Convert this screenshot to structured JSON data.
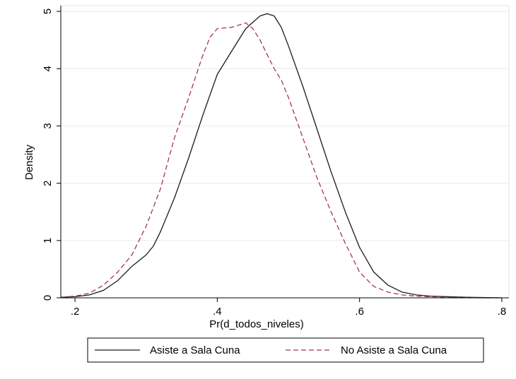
{
  "chart_data": {
    "type": "line",
    "xlabel": "Pr(d_todos_niveles)",
    "ylabel": "Density",
    "xlim": [
      0.18,
      0.81
    ],
    "ylim": [
      0,
      5.1
    ],
    "x_ticks": [
      {
        "value": 0.2,
        "label": ".2"
      },
      {
        "value": 0.4,
        "label": ".4"
      },
      {
        "value": 0.6,
        "label": ".6"
      },
      {
        "value": 0.8,
        "label": ".8"
      }
    ],
    "y_ticks": [
      {
        "value": 0,
        "label": "0"
      },
      {
        "value": 1,
        "label": "1"
      },
      {
        "value": 2,
        "label": "2"
      },
      {
        "value": 3,
        "label": "3"
      },
      {
        "value": 4,
        "label": "4"
      },
      {
        "value": 5,
        "label": "5"
      }
    ],
    "grid": "horizontal",
    "legend_position": "bottom",
    "series": [
      {
        "name": "Asiste a Sala Cuna",
        "color": "#1a1a1a",
        "line_style": "solid",
        "points": [
          [
            0.18,
            0.01
          ],
          [
            0.2,
            0.02
          ],
          [
            0.22,
            0.05
          ],
          [
            0.24,
            0.13
          ],
          [
            0.26,
            0.3
          ],
          [
            0.28,
            0.55
          ],
          [
            0.3,
            0.75
          ],
          [
            0.31,
            0.9
          ],
          [
            0.32,
            1.15
          ],
          [
            0.34,
            1.75
          ],
          [
            0.36,
            2.45
          ],
          [
            0.38,
            3.2
          ],
          [
            0.4,
            3.9
          ],
          [
            0.42,
            4.3
          ],
          [
            0.44,
            4.7
          ],
          [
            0.46,
            4.92
          ],
          [
            0.47,
            4.96
          ],
          [
            0.48,
            4.92
          ],
          [
            0.49,
            4.72
          ],
          [
            0.5,
            4.4
          ],
          [
            0.52,
            3.7
          ],
          [
            0.54,
            2.95
          ],
          [
            0.56,
            2.2
          ],
          [
            0.58,
            1.5
          ],
          [
            0.6,
            0.88
          ],
          [
            0.62,
            0.45
          ],
          [
            0.64,
            0.22
          ],
          [
            0.66,
            0.1
          ],
          [
            0.68,
            0.05
          ],
          [
            0.7,
            0.03
          ],
          [
            0.75,
            0.01
          ],
          [
            0.8,
            0.0
          ]
        ]
      },
      {
        "name": "No Asiste a Sala Cuna",
        "color": "#a3384a",
        "line_style": "dashed",
        "points": [
          [
            0.18,
            0.01
          ],
          [
            0.2,
            0.03
          ],
          [
            0.22,
            0.08
          ],
          [
            0.24,
            0.22
          ],
          [
            0.26,
            0.45
          ],
          [
            0.28,
            0.75
          ],
          [
            0.3,
            1.25
          ],
          [
            0.32,
            1.9
          ],
          [
            0.34,
            2.8
          ],
          [
            0.36,
            3.5
          ],
          [
            0.38,
            4.25
          ],
          [
            0.39,
            4.55
          ],
          [
            0.4,
            4.7
          ],
          [
            0.42,
            4.72
          ],
          [
            0.44,
            4.8
          ],
          [
            0.45,
            4.7
          ],
          [
            0.46,
            4.5
          ],
          [
            0.47,
            4.25
          ],
          [
            0.48,
            4.0
          ],
          [
            0.49,
            3.8
          ],
          [
            0.5,
            3.5
          ],
          [
            0.52,
            2.8
          ],
          [
            0.54,
            2.1
          ],
          [
            0.56,
            1.5
          ],
          [
            0.58,
            0.95
          ],
          [
            0.6,
            0.45
          ],
          [
            0.62,
            0.2
          ],
          [
            0.64,
            0.1
          ],
          [
            0.66,
            0.05
          ],
          [
            0.68,
            0.03
          ],
          [
            0.72,
            0.01
          ],
          [
            0.78,
            0.0
          ],
          [
            0.8,
            0.0
          ]
        ]
      }
    ]
  }
}
